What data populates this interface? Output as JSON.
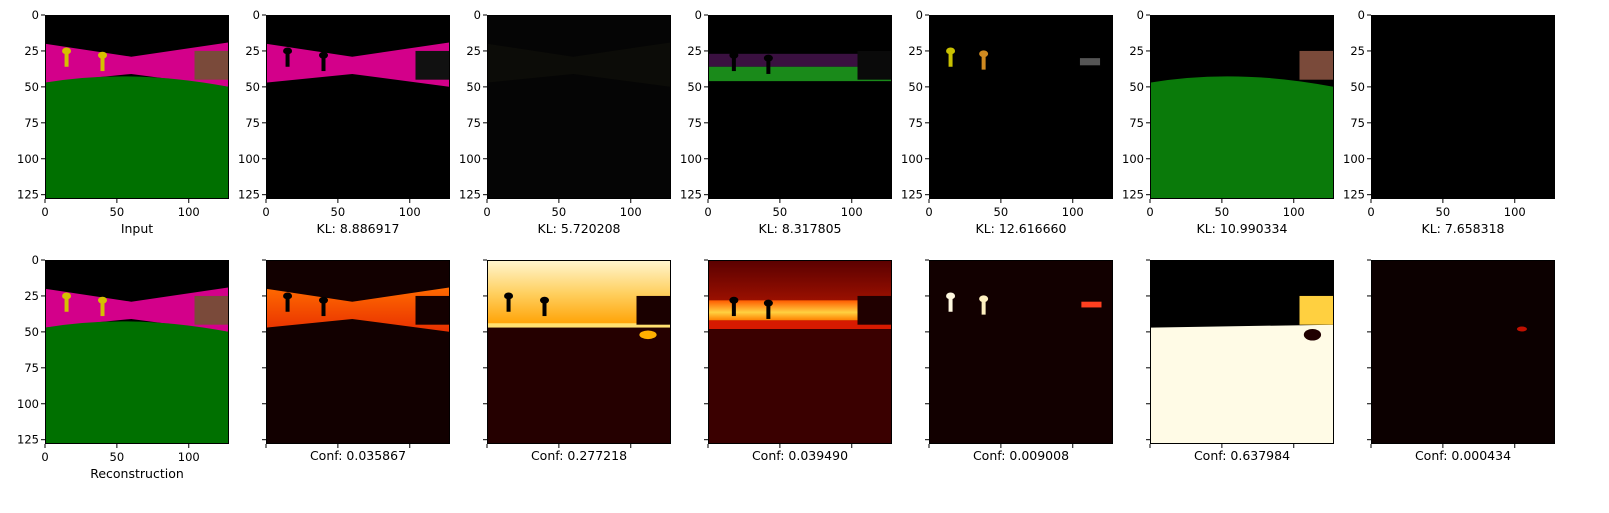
{
  "axis": {
    "ticks": [
      0,
      50,
      100
    ],
    "y_ticks": [
      0,
      25,
      50,
      75,
      100,
      125
    ],
    "xlim": [
      0,
      128
    ],
    "ylim": [
      128,
      0
    ]
  },
  "top_row": [
    {
      "kind": "input",
      "label": "Input"
    },
    {
      "kind": "mask-green",
      "label": "KL: 8.886917"
    },
    {
      "kind": "empty-dark",
      "label": "KL: 5.720208"
    },
    {
      "kind": "green-dim",
      "label": "KL: 8.317805"
    },
    {
      "kind": "keys-only",
      "label": "KL: 12.616660"
    },
    {
      "kind": "floor-green",
      "label": "KL: 10.990334"
    },
    {
      "kind": "black",
      "label": "KL: 7.658318"
    }
  ],
  "bottom_row": [
    {
      "kind": "input",
      "label": "Reconstruction"
    },
    {
      "kind": "heat-wall",
      "label": "Conf: 0.035867"
    },
    {
      "kind": "heat-yellow",
      "label": "Conf: 0.277218"
    },
    {
      "kind": "heat-red",
      "label": "Conf: 0.039490"
    },
    {
      "kind": "heat-keys",
      "label": "Conf: 0.009008"
    },
    {
      "kind": "heat-floor",
      "label": "Conf: 0.637984"
    },
    {
      "kind": "heat-dot",
      "label": "Conf: 0.000434"
    }
  ],
  "colors": {
    "wall": "#d3008a",
    "floor": "#007000",
    "sky": "#000000",
    "key": "#d4c000",
    "box": "#7a4a3a"
  }
}
